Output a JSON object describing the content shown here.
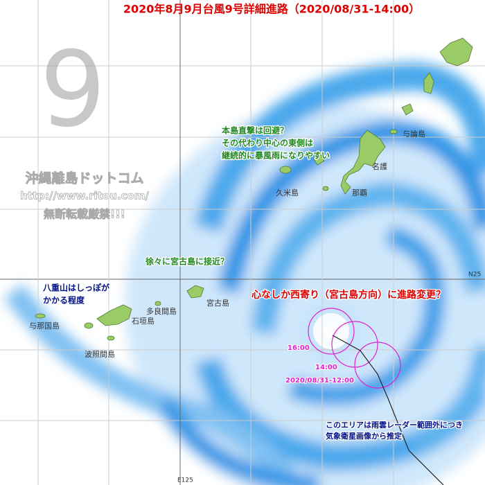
{
  "header": {
    "title": "2020年8月9月台風9号詳細進路（2020/08/31-14:00）"
  },
  "watermark": {
    "number": "9",
    "site": "沖縄離島ドットコム",
    "url": "http://www.ritou.com/",
    "notice": "無断転載厳禁!!!"
  },
  "grid_labels": {
    "lat": "N25",
    "lon": "E125"
  },
  "annotations": {
    "okinawa": [
      "本島直撃は回避？",
      "その代わり中心の東側は",
      "継続的に暴風雨になりやすい"
    ],
    "miyako": "徐々に宮古島に接近？",
    "yaeyama": [
      "八重山はしっぽが",
      "かかる程度"
    ],
    "track_change": "心なしか西寄り（宮古島方向）に進路変更？",
    "radar": [
      "このエリアは雨雲レーダー範囲外につき",
      "気象衛星画像から推定"
    ]
  },
  "places": [
    "与論島",
    "名護",
    "久米島",
    "那覇",
    "宮古島",
    "多良間島",
    "石垣島",
    "与那国島",
    "波照間島"
  ],
  "track_labels": [
    "16:00",
    "14:00",
    "2020/08/31-12:00"
  ]
}
